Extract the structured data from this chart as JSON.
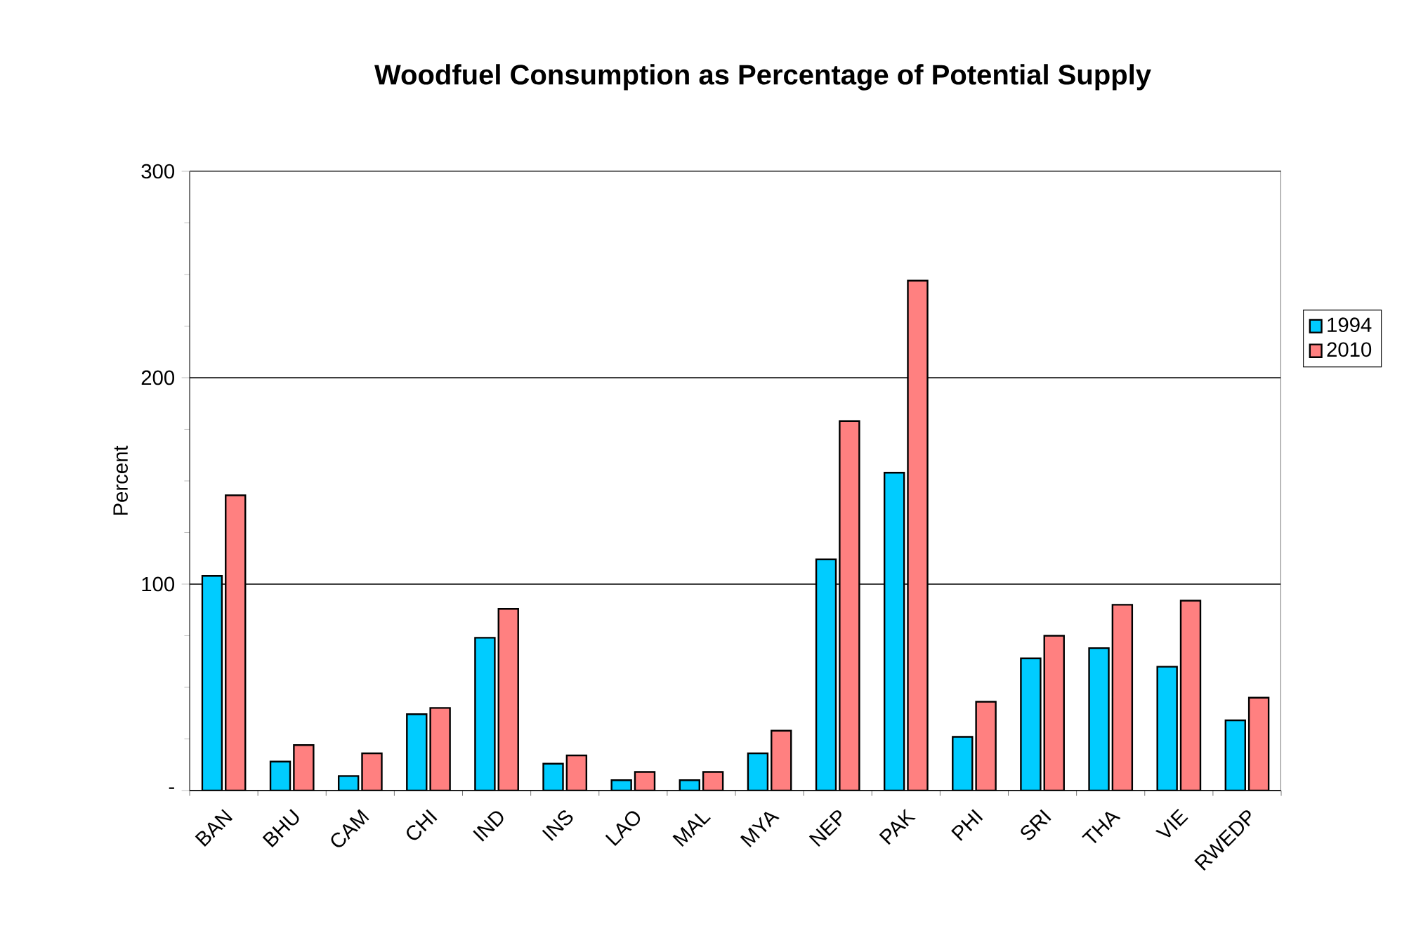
{
  "chart_data": {
    "type": "bar",
    "title": "Woodfuel Consumption as Percentage of Potential Supply",
    "ylabel": "Percent",
    "categories": [
      "BAN",
      "BHU",
      "CAM",
      "CHI",
      "IND",
      "INS",
      "LAO",
      "MAL",
      "MYA",
      "NEP",
      "PAK",
      "PHI",
      "SRI",
      "THA",
      "VIE",
      "RWEDP"
    ],
    "series": [
      {
        "name": "1994",
        "color": "#00ccff",
        "values": [
          104,
          14,
          7,
          37,
          74,
          13,
          5,
          5,
          18,
          112,
          154,
          26,
          64,
          69,
          60,
          34
        ]
      },
      {
        "name": "2010",
        "color": "#ff8080",
        "values": [
          143,
          22,
          18,
          40,
          88,
          17,
          9,
          9,
          29,
          179,
          247,
          43,
          75,
          90,
          92,
          45
        ]
      }
    ],
    "ylim": [
      0,
      300
    ],
    "yticks": [
      {
        "value": 0,
        "label": "-"
      },
      100,
      200,
      300
    ],
    "grid": "y",
    "legend": "right"
  }
}
